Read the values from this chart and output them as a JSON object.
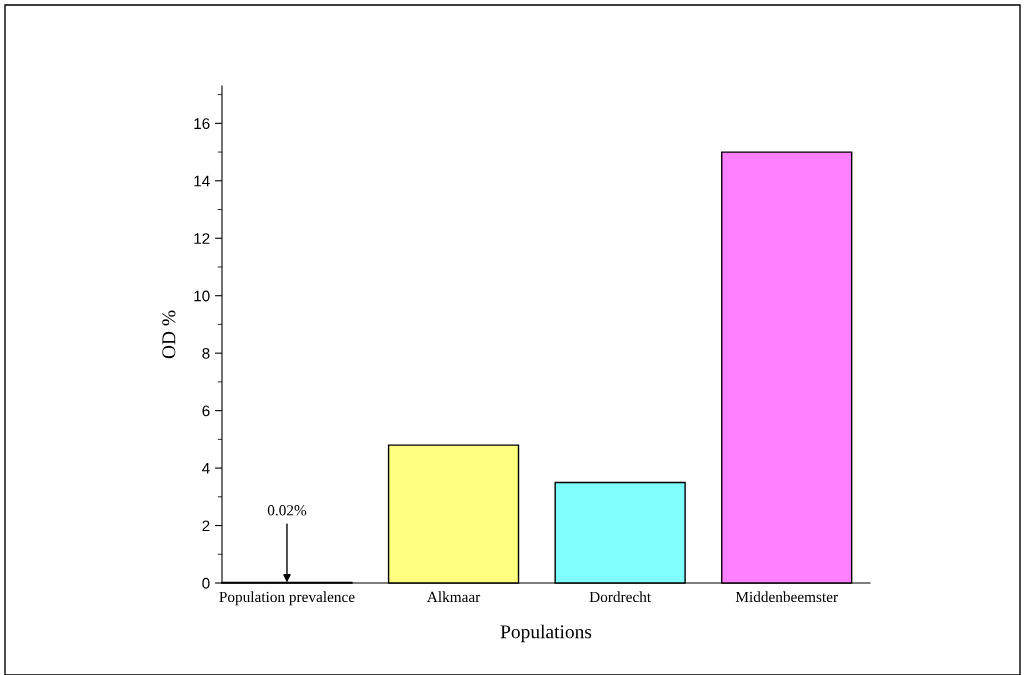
{
  "chart_data": {
    "type": "bar",
    "xlabel": "Populations",
    "ylabel": "OD %",
    "categories": [
      "Population prevalence",
      "Alkmaar",
      "Dordrecht",
      "Middenbeemster"
    ],
    "values": [
      0.02,
      4.8,
      3.5,
      15
    ],
    "colors": [
      "#ffffff",
      "#ffff80",
      "#80ffff",
      "#ff80ff"
    ],
    "ylim": [
      0,
      17.3
    ],
    "yticks": [
      0,
      2,
      4,
      6,
      8,
      10,
      12,
      14,
      16
    ],
    "grid": false,
    "annotations": [
      {
        "text": "0.02%",
        "x": "Population prevalence",
        "y": 0.02
      }
    ]
  }
}
